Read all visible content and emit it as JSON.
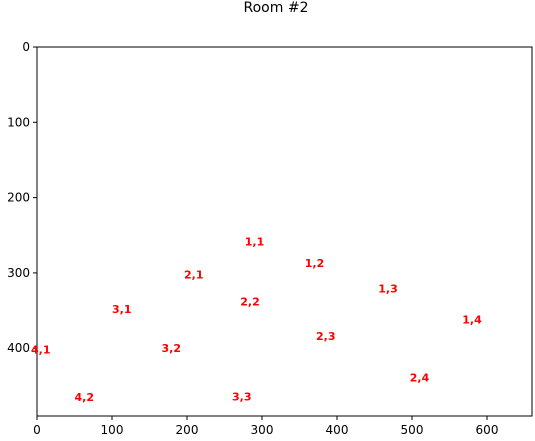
{
  "chart_data": {
    "type": "scatter",
    "title": "Room #2",
    "xlabel": "",
    "ylabel": "",
    "xlim": [
      0,
      660
    ],
    "ylim": [
      0,
      490
    ],
    "y_inverted": true,
    "grid": false,
    "x_ticks": [
      "0",
      "100",
      "200",
      "300",
      "400",
      "500",
      "600"
    ],
    "y_ticks": [
      "0",
      "100",
      "200",
      "300",
      "400"
    ],
    "marker_color": "#ff0000",
    "points": [
      {
        "label": "1,1",
        "x": 290,
        "y": 258
      },
      {
        "label": "1,2",
        "x": 370,
        "y": 287
      },
      {
        "label": "1,3",
        "x": 468,
        "y": 321
      },
      {
        "label": "1,4",
        "x": 580,
        "y": 362
      },
      {
        "label": "2,1",
        "x": 209,
        "y": 302
      },
      {
        "label": "2,2",
        "x": 284,
        "y": 338
      },
      {
        "label": "2,3",
        "x": 385,
        "y": 384
      },
      {
        "label": "2,4",
        "x": 510,
        "y": 439
      },
      {
        "label": "3,1",
        "x": 113,
        "y": 348
      },
      {
        "label": "3,2",
        "x": 179,
        "y": 400
      },
      {
        "label": "3,3",
        "x": 273,
        "y": 464
      },
      {
        "label": "4,1",
        "x": 5,
        "y": 402
      },
      {
        "label": "4,2",
        "x": 63,
        "y": 465
      }
    ]
  }
}
